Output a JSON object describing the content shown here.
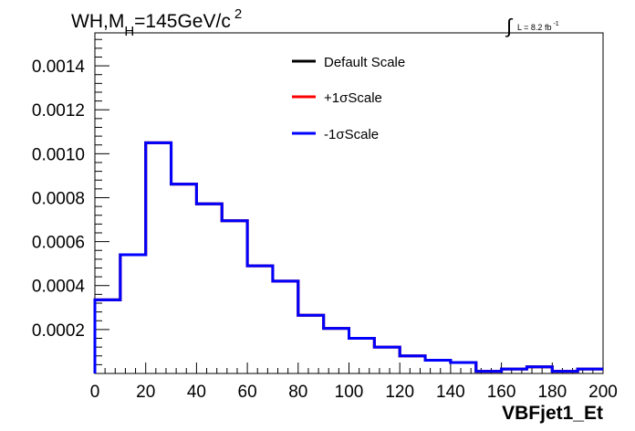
{
  "chart_data": {
    "type": "line",
    "title": "WH,M",
    "title_sub": "H",
    "title_rest": "=145GeV/c",
    "title_sup": "2",
    "lumi_label": "L = 8.2 fb",
    "lumi_sup": "-1",
    "xlabel": "VBFjet1_Et",
    "ylabel": "",
    "xlim": [
      0,
      200
    ],
    "ylim": [
      0,
      0.00155
    ],
    "x_ticks": [
      0,
      20,
      40,
      60,
      80,
      100,
      120,
      140,
      160,
      180,
      200
    ],
    "x_tick_labels": [
      "0",
      "20",
      "40",
      "60",
      "80",
      "100",
      "120",
      "140",
      "160",
      "180",
      "200"
    ],
    "y_ticks": [
      0.0002,
      0.0004,
      0.0006,
      0.0008,
      0.001,
      0.0012,
      0.0014
    ],
    "y_tick_labels": [
      "0.0002",
      "0.0004",
      "0.0006",
      "0.0008",
      "0.0010",
      "0.0012",
      "0.0014"
    ],
    "bin_edges": [
      0,
      10,
      20,
      30,
      40,
      50,
      60,
      70,
      80,
      90,
      100,
      110,
      120,
      130,
      140,
      150,
      160,
      170,
      180,
      190,
      200
    ],
    "legend_position": "top-center",
    "series": [
      {
        "name": "Default Scale",
        "color": "#000000",
        "values": [
          0.000335,
          0.00054,
          0.00105,
          0.000862,
          0.000772,
          0.000695,
          0.00049,
          0.00042,
          0.000265,
          0.000205,
          0.00016,
          0.00012,
          8e-05,
          6e-05,
          5e-05,
          1e-05,
          2e-05,
          3e-05,
          1e-05,
          2e-05
        ]
      },
      {
        "name": "+1σScale",
        "color": "#ff0000",
        "values": [
          0.000335,
          0.00054,
          0.00105,
          0.000862,
          0.000772,
          0.000695,
          0.00049,
          0.00042,
          0.000265,
          0.000205,
          0.00016,
          0.00012,
          8e-05,
          6e-05,
          5e-05,
          1e-05,
          2e-05,
          3e-05,
          1e-05,
          2e-05
        ]
      },
      {
        "name": "-1σScale",
        "color": "#0000ff",
        "values": [
          0.000335,
          0.00054,
          0.00105,
          0.000862,
          0.000772,
          0.000695,
          0.00049,
          0.00042,
          0.000265,
          0.000205,
          0.00016,
          0.00012,
          8e-05,
          6e-05,
          5e-05,
          1e-05,
          2e-05,
          3e-05,
          1e-05,
          2e-05
        ]
      }
    ]
  }
}
